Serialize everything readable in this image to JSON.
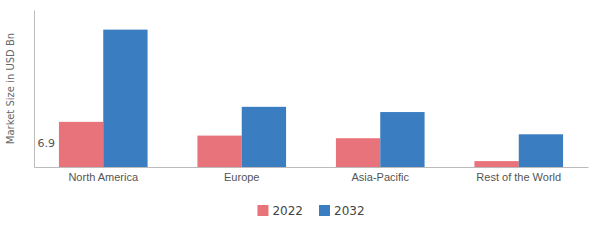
{
  "chart_data": {
    "type": "bar",
    "categories": [
      "North America",
      "Europe",
      "Asia-Pacific",
      "Rest of the World"
    ],
    "series": [
      {
        "name": "2022",
        "color": "#e8737a",
        "values": [
          6.9,
          4.8,
          4.4,
          0.9
        ]
      },
      {
        "name": "2032",
        "color": "#3a7dc0",
        "values": [
          21.0,
          9.2,
          8.4,
          5.0
        ]
      }
    ],
    "ylabel": "Market Size in USD Bn",
    "ylim": [
      0,
      24
    ],
    "tick_labels": "x",
    "grid": false,
    "legend": "bottom",
    "annotations": [
      {
        "text": "6.9",
        "x": "North America",
        "series": "2022"
      }
    ]
  }
}
